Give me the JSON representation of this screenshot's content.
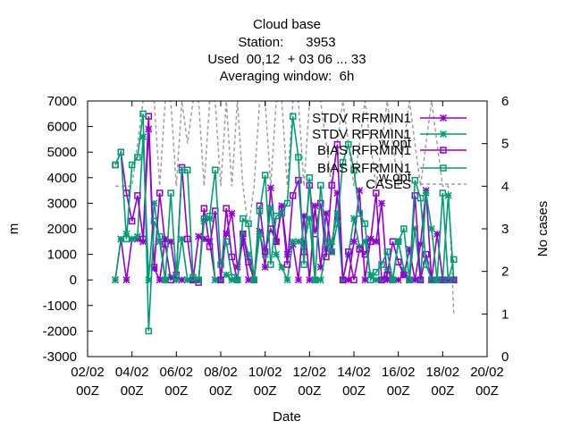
{
  "chart_data": {
    "type": "line",
    "title_lines": [
      "Cloud base",
      "Station:      3953",
      "Used  00,12  + 03 06 ... 33",
      "Averaging window:  6h"
    ],
    "xlabel": "Date",
    "ylabel": "m",
    "y2label": "No cases",
    "xlim": [
      0,
      18
    ],
    "ylim": [
      -3000,
      7000
    ],
    "y2lim": [
      0,
      6
    ],
    "x_ticks": [
      {
        "v": 0,
        "l1": "02/02",
        "l2": "00Z"
      },
      {
        "v": 2,
        "l1": "04/02",
        "l2": "00Z"
      },
      {
        "v": 4,
        "l1": "06/02",
        "l2": "00Z"
      },
      {
        "v": 6,
        "l1": "08/02",
        "l2": "00Z"
      },
      {
        "v": 8,
        "l1": "10/02",
        "l2": "00Z"
      },
      {
        "v": 10,
        "l1": "12/02",
        "l2": "00Z"
      },
      {
        "v": 12,
        "l1": "14/02",
        "l2": "00Z"
      },
      {
        "v": 14,
        "l1": "16/02",
        "l2": "00Z"
      },
      {
        "v": 16,
        "l1": "18/02",
        "l2": "00Z"
      },
      {
        "v": 18,
        "l1": "20/02",
        "l2": "00Z"
      }
    ],
    "y_ticks": [
      -3000,
      -2000,
      -1000,
      0,
      1000,
      2000,
      3000,
      4000,
      5000,
      6000,
      7000
    ],
    "y2_ticks": [
      0,
      1,
      2,
      3,
      4,
      5,
      6
    ],
    "legend_position": "top-right",
    "series": [
      {
        "name": "STDV RFRMIN1",
        "name_sub": "",
        "color": "#9400d3",
        "marker": "star",
        "axis": "y",
        "x": [
          1.25,
          1.5,
          1.75,
          2.0,
          2.25,
          2.5,
          2.75,
          3.0,
          3.25,
          3.5,
          3.75,
          4.0,
          4.25,
          4.5,
          4.75,
          5.0,
          5.25,
          5.5,
          5.75,
          6.0,
          6.25,
          6.5,
          6.75,
          7.0,
          7.25,
          7.5,
          7.75,
          8.0,
          8.25,
          8.5,
          8.75,
          9.0,
          9.25,
          9.5,
          9.75,
          10.0,
          10.25,
          10.5,
          10.75,
          11.0,
          11.25,
          11.5,
          11.75,
          12.0,
          12.25,
          12.5,
          12.75,
          13.0,
          13.25,
          13.5,
          13.75,
          14.0,
          14.25,
          14.5,
          14.75,
          15.0,
          15.25,
          15.5,
          15.75,
          16.0,
          16.25,
          16.5
        ],
        "y": [
          0,
          1600,
          0,
          1600,
          1600,
          1500,
          5900,
          450,
          0,
          1600,
          1500,
          0,
          0,
          0,
          0,
          1700,
          1600,
          1500,
          0,
          0,
          1800,
          2600,
          500,
          1500,
          0,
          0,
          1900,
          500,
          3600,
          1500,
          2900,
          1000,
          1400,
          0,
          2500,
          0,
          2900,
          500,
          2600,
          1100,
          3400,
          0,
          0,
          1500,
          3500,
          0,
          1600,
          1500,
          3000,
          0,
          0,
          0,
          200,
          1200,
          0,
          1400,
          3500,
          0,
          1800,
          0,
          0,
          0
        ]
      },
      {
        "name": "STDV RFRMIN1",
        "name_sub": "w opt",
        "color": "#009e73",
        "marker": "star",
        "axis": "y",
        "x": [
          1.25,
          1.5,
          1.75,
          2.0,
          2.25,
          2.5,
          2.75,
          3.0,
          3.25,
          3.5,
          3.75,
          4.0,
          4.25,
          4.5,
          4.75,
          5.0,
          5.25,
          5.5,
          5.75,
          6.0,
          6.25,
          6.5,
          6.75,
          7.0,
          7.25,
          7.5,
          7.75,
          8.0,
          8.25,
          8.5,
          8.75,
          9.0,
          9.25,
          9.5,
          9.75,
          10.0,
          10.25,
          10.5,
          10.75,
          11.0,
          11.25,
          11.5,
          11.75,
          12.0,
          12.25,
          12.5,
          12.75,
          13.0,
          13.25,
          13.5,
          13.75,
          14.0,
          14.25,
          14.5,
          14.75,
          15.0,
          15.25,
          15.5,
          15.75,
          16.0,
          16.25,
          16.5
        ],
        "y": [
          0,
          1600,
          1800,
          1600,
          1700,
          5600,
          0,
          3000,
          1500,
          0,
          100,
          0,
          1600,
          0,
          0,
          0,
          2300,
          2400,
          0,
          0,
          200,
          0,
          0,
          1800,
          1000,
          0,
          1800,
          1000,
          2800,
          1000,
          500,
          0,
          1500,
          1500,
          1400,
          2400,
          0,
          0,
          1200,
          1500,
          2600,
          0,
          1000,
          2400,
          1300,
          1500,
          200,
          0,
          0,
          400,
          0,
          1500,
          400,
          0,
          2000,
          0,
          3400,
          2000,
          0,
          0,
          3300,
          0
        ]
      },
      {
        "name": "BIAS RFRMIN1",
        "name_sub": "",
        "color": "#9400d3",
        "marker": "square",
        "axis": "y",
        "x": [
          1.25,
          1.5,
          1.75,
          2.0,
          2.25,
          2.5,
          2.75,
          3.0,
          3.25,
          3.5,
          3.75,
          4.0,
          4.25,
          4.5,
          4.75,
          5.0,
          5.25,
          5.5,
          5.75,
          6.0,
          6.25,
          6.5,
          6.75,
          7.0,
          7.25,
          7.5,
          7.75,
          8.0,
          8.25,
          8.5,
          8.75,
          9.0,
          9.25,
          9.5,
          9.75,
          10.0,
          10.25,
          10.5,
          10.75,
          11.0,
          11.25,
          11.5,
          11.75,
          12.0,
          12.25,
          12.5,
          12.75,
          13.0,
          13.25,
          13.5,
          13.75,
          14.0,
          14.25,
          14.5,
          14.75,
          15.0,
          15.25,
          15.5,
          15.75,
          16.0,
          16.25,
          16.5
        ],
        "y": [
          4500,
          5000,
          3400,
          2300,
          3300,
          1600,
          6400,
          500,
          3400,
          1400,
          0,
          200,
          4400,
          1600,
          0,
          -100,
          2800,
          1300,
          2700,
          0,
          2800,
          900,
          0,
          1800,
          700,
          0,
          2900,
          1100,
          2000,
          1500,
          2800,
          600,
          3300,
          3900,
          1100,
          3700,
          1800,
          3000,
          900,
          3700,
          5300,
          0,
          1100,
          0,
          1200,
          1000,
          1500,
          3400,
          0,
          200,
          1500,
          700,
          200,
          0,
          3300,
          0,
          1000,
          0,
          0,
          0,
          0,
          0
        ]
      },
      {
        "name": "BIAS RFRMIN1",
        "name_sub": "w opt",
        "color": "#009e73",
        "marker": "square",
        "axis": "y",
        "x": [
          1.25,
          1.5,
          1.75,
          2.0,
          2.25,
          2.5,
          2.75,
          3.0,
          3.25,
          3.5,
          3.75,
          4.0,
          4.25,
          4.5,
          4.75,
          5.0,
          5.25,
          5.5,
          5.75,
          6.0,
          6.25,
          6.5,
          6.75,
          7.0,
          7.25,
          7.5,
          7.75,
          8.0,
          8.25,
          8.5,
          8.75,
          9.0,
          9.25,
          9.5,
          9.75,
          10.0,
          10.25,
          10.5,
          10.75,
          11.0,
          11.25,
          11.5,
          11.75,
          12.0,
          12.25,
          12.5,
          12.75,
          13.0,
          13.25,
          13.5,
          13.75,
          14.0,
          14.25,
          14.5,
          14.75,
          15.0,
          15.25,
          15.5,
          15.75,
          16.0,
          16.25,
          16.5
        ],
        "y": [
          4500,
          5000,
          1600,
          4500,
          4800,
          6500,
          -2000,
          2300,
          1700,
          0,
          3400,
          100,
          4300,
          4300,
          100,
          0,
          2400,
          2500,
          4300,
          600,
          1500,
          100,
          0,
          2400,
          2200,
          0,
          2700,
          4100,
          600,
          2500,
          2600,
          3000,
          6400,
          4800,
          600,
          4000,
          0,
          3700,
          1500,
          1100,
          2200,
          4600,
          5300,
          4300,
          2600,
          2200,
          0,
          300,
          600,
          1100,
          0,
          1500,
          2000,
          0,
          3900,
          3200,
          600,
          0,
          0,
          3400,
          0,
          800
        ]
      },
      {
        "name": "CASES",
        "name_sub": "",
        "color": "#a0a0a0",
        "marker": "none",
        "axis": "y2",
        "dashed": true,
        "x": [
          1.25,
          2.0,
          2.5,
          3.0,
          3.25,
          3.5,
          3.75,
          4.0,
          4.25,
          4.5,
          4.75,
          5.0,
          5.25,
          5.5,
          5.75,
          6.0,
          6.25,
          6.5,
          6.75,
          7.0,
          7.25,
          7.5,
          7.75,
          8.0,
          8.25,
          8.5,
          8.75,
          9.0,
          9.25,
          9.5,
          9.75,
          10.0,
          10.5,
          11.0,
          11.5,
          12.0,
          12.5,
          13.0,
          13.5,
          14.0,
          14.5,
          15.0,
          15.5,
          16.0,
          16.25,
          16.5
        ],
        "y": [
          4,
          4,
          6,
          6,
          4,
          6,
          6,
          4,
          6,
          5,
          6,
          6,
          4,
          6,
          6,
          4,
          6,
          4,
          6,
          4,
          3,
          4,
          6,
          6,
          4,
          6,
          6,
          4,
          6,
          6,
          4,
          6,
          6,
          4,
          6,
          4,
          6,
          4,
          6,
          4,
          6,
          4,
          6,
          4,
          4,
          1
        ]
      }
    ]
  }
}
